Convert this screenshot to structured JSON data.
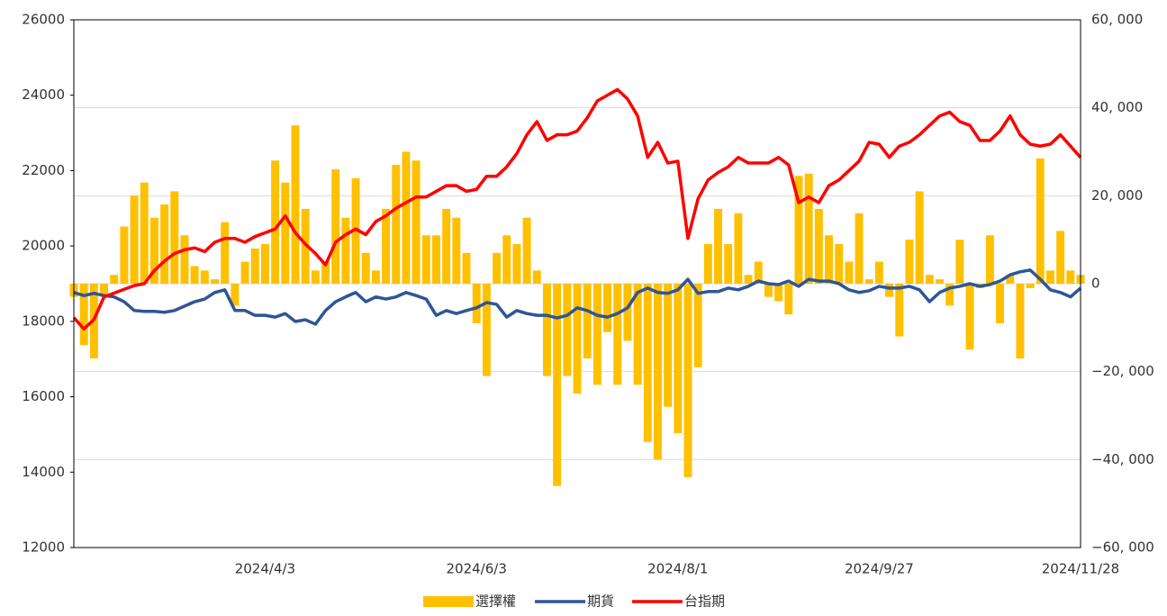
{
  "chart_data": {
    "type": "bar_line",
    "categories": [
      null,
      null,
      null,
      null,
      null,
      null,
      null,
      null,
      null,
      null,
      null,
      null,
      null,
      null,
      null,
      null,
      null,
      null,
      null,
      "2024/4/3",
      null,
      null,
      null,
      null,
      null,
      null,
      null,
      null,
      null,
      null,
      null,
      null,
      null,
      null,
      null,
      null,
      null,
      null,
      null,
      null,
      "2024/6/3",
      null,
      null,
      null,
      null,
      null,
      null,
      null,
      null,
      null,
      null,
      null,
      null,
      null,
      null,
      null,
      null,
      null,
      null,
      null,
      "2024/8/1",
      null,
      null,
      null,
      null,
      null,
      null,
      null,
      null,
      null,
      null,
      null,
      null,
      null,
      null,
      null,
      null,
      null,
      null,
      null,
      "2024/9/27",
      null,
      null,
      null,
      null,
      null,
      null,
      null,
      null,
      null,
      null,
      null,
      null,
      null,
      null,
      null,
      null,
      null,
      null,
      null,
      "2024/11/28"
    ],
    "series": [
      {
        "name": "選擇權",
        "kind": "bar",
        "axis": "y2",
        "color": "#FFC000",
        "values": [
          -3000,
          -14000,
          -17000,
          -3000,
          2000,
          13000,
          20000,
          23000,
          15000,
          18000,
          21000,
          11000,
          4000,
          3000,
          1000,
          14000,
          -5000,
          5000,
          8000,
          9000,
          28000,
          23000,
          36000,
          17000,
          3000,
          5000,
          26000,
          15000,
          24000,
          7000,
          3000,
          17000,
          27000,
          30000,
          28000,
          11000,
          11000,
          17000,
          15000,
          7000,
          -9000,
          -21000,
          7000,
          11000,
          9000,
          15000,
          3000,
          -21000,
          -46000,
          -21000,
          -25000,
          -17000,
          -23000,
          -11000,
          -23000,
          -13000,
          -23000,
          -36000,
          -40000,
          -28000,
          -34000,
          -44000,
          -19000,
          9000,
          17000,
          9000,
          16000,
          2000,
          5000,
          -3000,
          -4000,
          -7000,
          24500,
          25000,
          17000,
          11000,
          9000,
          5000,
          16000,
          1000,
          5000,
          -3000,
          -12000,
          10000,
          21000,
          2000,
          1000,
          -5000,
          10000,
          -15000,
          -1000,
          11000,
          -9000,
          2000,
          -17000,
          -1000,
          28500,
          3000,
          12000,
          3000,
          2000
        ]
      },
      {
        "name": "期貨",
        "kind": "line",
        "axis": "y2",
        "color": "#2F5597",
        "values": [
          -2000,
          -2700,
          -2200,
          -2700,
          -3000,
          -4100,
          -6100,
          -6300,
          -6300,
          -6500,
          -6100,
          -5100,
          -4100,
          -3500,
          -2000,
          -1400,
          -6100,
          -6100,
          -7200,
          -7200,
          -7600,
          -6800,
          -8600,
          -8200,
          -9200,
          -6100,
          -4100,
          -3000,
          -2000,
          -4100,
          -3000,
          -3500,
          -3000,
          -2000,
          -2700,
          -3500,
          -7200,
          -6100,
          -6800,
          -6100,
          -5500,
          -4300,
          -4700,
          -7600,
          -6100,
          -6800,
          -7200,
          -7200,
          -7800,
          -7200,
          -5500,
          -6100,
          -7200,
          -7600,
          -6800,
          -5500,
          -2000,
          -1000,
          -2000,
          -2200,
          -1400,
          1000,
          -2200,
          -1800,
          -1800,
          -1000,
          -1400,
          -600,
          600,
          0,
          -200,
          600,
          -600,
          1000,
          600,
          600,
          0,
          -1400,
          -2000,
          -1600,
          -600,
          -1000,
          -1000,
          -600,
          -1400,
          -4100,
          -2000,
          -1000,
          -600,
          0,
          -600,
          -200,
          600,
          2000,
          2700,
          3100,
          1000,
          -1400,
          -2000,
          -3000,
          -1000
        ]
      },
      {
        "name": "台指期",
        "kind": "line",
        "axis": "y",
        "color": "#FF0000",
        "values": [
          18100,
          17800,
          18050,
          18650,
          18750,
          18850,
          18950,
          19000,
          19350,
          19600,
          19800,
          19900,
          19950,
          19850,
          20100,
          20200,
          20200,
          20100,
          20250,
          20350,
          20450,
          20800,
          20350,
          20050,
          19800,
          19500,
          20100,
          20300,
          20450,
          20300,
          20650,
          20800,
          21000,
          21150,
          21300,
          21300,
          21450,
          21600,
          21600,
          21450,
          21500,
          21850,
          21850,
          22100,
          22450,
          22950,
          23300,
          22800,
          22950,
          22950,
          23050,
          23400,
          23850,
          24000,
          24150,
          23900,
          23450,
          22350,
          22750,
          22200,
          22250,
          20200,
          21250,
          21750,
          21950,
          22100,
          22350,
          22200,
          22200,
          22200,
          22350,
          22150,
          21150,
          21300,
          21150,
          21600,
          21750,
          22000,
          22250,
          22750,
          22700,
          22350,
          22650,
          22750,
          22950,
          23200,
          23450,
          23550,
          23300,
          23200,
          22800,
          22800,
          23050,
          23450,
          22950,
          22700,
          22650,
          22700,
          22950,
          22650,
          22350
        ]
      }
    ],
    "ylim": [
      12000,
      26000
    ],
    "yticks": [
      12000,
      14000,
      16000,
      18000,
      20000,
      22000,
      24000,
      26000
    ],
    "y2lim": [
      -60000,
      60000
    ],
    "y2ticks": [
      {
        "value": -60000,
        "label": "−60, 000"
      },
      {
        "value": -40000,
        "label": "−40, 000"
      },
      {
        "value": -20000,
        "label": "−20, 000"
      },
      0,
      {
        "value": 20000,
        "label": "20, 000"
      },
      {
        "value": 40000,
        "label": "40, 000"
      },
      {
        "value": 60000,
        "label": "60, 000"
      }
    ],
    "grid": true,
    "legend": "bottom"
  }
}
